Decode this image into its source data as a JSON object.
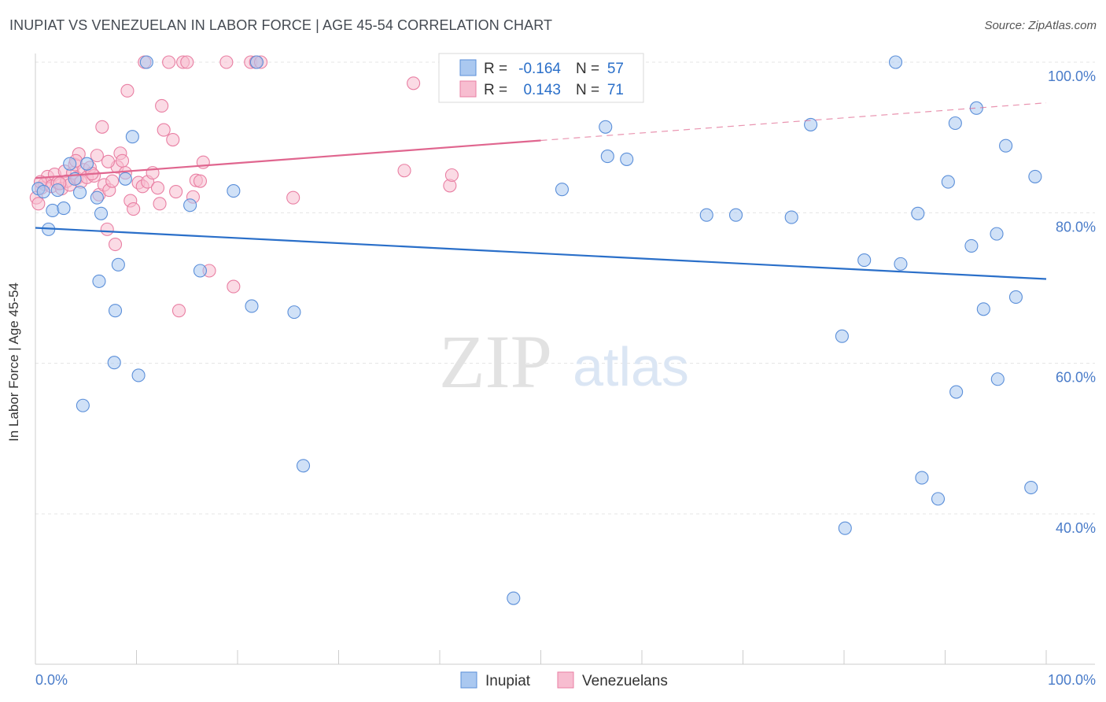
{
  "title": "INUPIAT VS VENEZUELAN IN LABOR FORCE | AGE 45-54 CORRELATION CHART",
  "source": "Source: ZipAtlas.com",
  "watermark": {
    "zip": "ZIP",
    "atlas": "atlas"
  },
  "colors": {
    "blue": "#5b8fd9",
    "blue_fill": "#aac8f0",
    "blue_line": "#2a6fc9",
    "pink": "#e97fa3",
    "pink_fill": "#f7bdd0",
    "pink_line": "#e0668f",
    "tick_text": "#4a7cc9"
  },
  "chart_data": {
    "type": "scatter",
    "title": "INUPIAT VS VENEZUELAN IN LABOR FORCE | AGE 45-54 CORRELATION CHART",
    "xlabel": "",
    "ylabel": "In Labor Force | Age 45-54",
    "xlim": [
      0,
      100
    ],
    "ylim": [
      20,
      104
    ],
    "x_tick_labels": [
      "0.0%",
      "100.0%"
    ],
    "y_ticks": [
      40,
      60,
      80,
      100
    ],
    "y_tick_labels": [
      "40.0%",
      "60.0%",
      "80.0%",
      "100.0%"
    ],
    "grid": true,
    "legend_position": "top-center",
    "stats": [
      {
        "r_label": "R =",
        "r_value": "-0.164",
        "n_label": "N =",
        "n_value": "57"
      },
      {
        "r_label": "R =",
        "r_value": "0.143",
        "n_label": "N =",
        "n_value": "71"
      }
    ],
    "series": [
      {
        "name": "Inupiat",
        "trend": {
          "x0": 0,
          "y0": 78.0,
          "x1": 100,
          "y1": 71.2,
          "dashed_from": null
        },
        "points": [
          [
            0.3,
            83.2
          ],
          [
            0.8,
            82.8
          ],
          [
            1.3,
            77.8
          ],
          [
            1.7,
            80.3
          ],
          [
            2.2,
            83.0
          ],
          [
            2.8,
            80.6
          ],
          [
            3.4,
            86.5
          ],
          [
            3.9,
            84.5
          ],
          [
            4.4,
            82.7
          ],
          [
            4.7,
            54.4
          ],
          [
            5.1,
            86.5
          ],
          [
            6.1,
            82.0
          ],
          [
            6.3,
            70.9
          ],
          [
            6.5,
            79.9
          ],
          [
            7.9,
            67.0
          ],
          [
            7.8,
            60.1
          ],
          [
            8.2,
            73.1
          ],
          [
            8.9,
            84.5
          ],
          [
            9.6,
            90.1
          ],
          [
            10.2,
            58.4
          ],
          [
            11.0,
            100.0
          ],
          [
            15.3,
            81.0
          ],
          [
            16.3,
            72.3
          ],
          [
            19.6,
            82.9
          ],
          [
            21.4,
            67.6
          ],
          [
            21.9,
            100.0
          ],
          [
            25.6,
            66.8
          ],
          [
            26.5,
            46.4
          ],
          [
            47.3,
            28.8
          ],
          [
            52.1,
            83.1
          ],
          [
            56.4,
            91.4
          ],
          [
            56.6,
            87.5
          ],
          [
            58.5,
            87.1
          ],
          [
            66.4,
            79.7
          ],
          [
            69.3,
            79.7
          ],
          [
            74.8,
            79.4
          ],
          [
            76.7,
            91.7
          ],
          [
            79.8,
            63.6
          ],
          [
            80.1,
            38.1
          ],
          [
            82.0,
            73.7
          ],
          [
            85.1,
            100.0
          ],
          [
            85.6,
            73.2
          ],
          [
            87.3,
            79.9
          ],
          [
            87.7,
            44.8
          ],
          [
            89.3,
            42.0
          ],
          [
            90.3,
            84.1
          ],
          [
            91.0,
            91.9
          ],
          [
            91.1,
            56.2
          ],
          [
            92.6,
            75.6
          ],
          [
            93.1,
            93.9
          ],
          [
            93.8,
            67.2
          ],
          [
            95.1,
            77.2
          ],
          [
            95.2,
            57.9
          ],
          [
            96.0,
            88.9
          ],
          [
            97.0,
            68.8
          ],
          [
            98.5,
            43.5
          ],
          [
            98.9,
            84.8
          ]
        ]
      },
      {
        "name": "Venezuelans",
        "trend": {
          "x0": 0,
          "y0": 84.6,
          "x1": 100,
          "y1": 94.6,
          "dashed_from": 50
        },
        "points": [
          [
            0.1,
            82.0
          ],
          [
            0.3,
            81.2
          ],
          [
            0.6,
            83.3
          ],
          [
            0.9,
            83.8
          ],
          [
            1.2,
            84.8
          ],
          [
            1.6,
            83.5
          ],
          [
            1.9,
            85.1
          ],
          [
            2.2,
            84.0
          ],
          [
            2.6,
            83.2
          ],
          [
            2.9,
            85.5
          ],
          [
            3.1,
            84.2
          ],
          [
            3.4,
            83.7
          ],
          [
            3.7,
            85.3
          ],
          [
            3.9,
            86.4
          ],
          [
            4.1,
            84.6
          ],
          [
            4.3,
            87.8
          ],
          [
            4.5,
            84.1
          ],
          [
            4.8,
            85.7
          ],
          [
            5.1,
            84.7
          ],
          [
            5.4,
            86.0
          ],
          [
            5.8,
            84.9
          ],
          [
            6.1,
            87.6
          ],
          [
            6.3,
            82.4
          ],
          [
            6.6,
            91.4
          ],
          [
            6.8,
            83.7
          ],
          [
            7.1,
            77.8
          ],
          [
            7.3,
            83.0
          ],
          [
            7.6,
            84.2
          ],
          [
            7.9,
            75.8
          ],
          [
            8.1,
            86.1
          ],
          [
            8.4,
            87.9
          ],
          [
            8.6,
            86.9
          ],
          [
            8.9,
            85.3
          ],
          [
            9.1,
            96.2
          ],
          [
            9.4,
            81.6
          ],
          [
            9.7,
            80.5
          ],
          [
            10.2,
            84.0
          ],
          [
            10.6,
            83.5
          ],
          [
            11.1,
            84.1
          ],
          [
            11.6,
            85.3
          ],
          [
            12.1,
            83.3
          ],
          [
            12.3,
            81.2
          ],
          [
            12.5,
            94.2
          ],
          [
            12.7,
            91.0
          ],
          [
            13.2,
            100.0
          ],
          [
            13.6,
            89.7
          ],
          [
            13.9,
            82.8
          ],
          [
            14.2,
            67.0
          ],
          [
            14.6,
            100.0
          ],
          [
            15.0,
            100.0
          ],
          [
            15.6,
            82.1
          ],
          [
            15.9,
            84.3
          ],
          [
            16.3,
            84.2
          ],
          [
            16.6,
            86.7
          ],
          [
            17.2,
            72.3
          ],
          [
            19.6,
            70.2
          ],
          [
            21.3,
            100.0
          ],
          [
            21.8,
            100.0
          ],
          [
            22.3,
            100.0
          ],
          [
            25.5,
            82.0
          ],
          [
            36.5,
            85.6
          ],
          [
            37.4,
            97.2
          ],
          [
            41.0,
            83.6
          ],
          [
            41.2,
            85.0
          ],
          [
            7.2,
            86.8
          ],
          [
            10.8,
            100.0
          ],
          [
            18.9,
            100.0
          ],
          [
            4.0,
            86.9
          ],
          [
            2.4,
            83.9
          ],
          [
            5.6,
            85.2
          ],
          [
            0.5,
            84.1
          ]
        ]
      }
    ]
  },
  "legend": {
    "items": [
      {
        "label": "Inupiat"
      },
      {
        "label": "Venezuelans"
      }
    ]
  }
}
